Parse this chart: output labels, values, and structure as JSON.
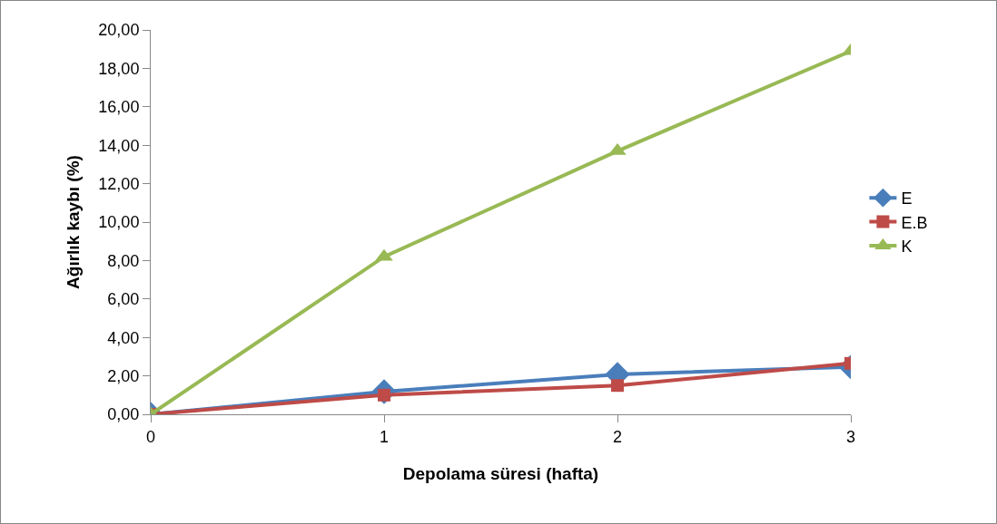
{
  "chart_data": {
    "type": "line",
    "xlabel": "Depolama süresi (hafta)",
    "ylabel": "Ağırlık kaybı (%)",
    "x": [
      0,
      1,
      2,
      3
    ],
    "xlim": [
      0,
      3
    ],
    "xticks": [
      0,
      1,
      2,
      3
    ],
    "ylim": [
      0,
      20
    ],
    "yticks": [
      {
        "value": 0,
        "label": "0,00"
      },
      {
        "value": 2,
        "label": "2,00"
      },
      {
        "value": 4,
        "label": "4,00"
      },
      {
        "value": 6,
        "label": "6,00"
      },
      {
        "value": 8,
        "label": "8,00"
      },
      {
        "value": 10,
        "label": "10,00"
      },
      {
        "value": 12,
        "label": "12,00"
      },
      {
        "value": 14,
        "label": "14,00"
      },
      {
        "value": 16,
        "label": "16,00"
      },
      {
        "value": 18,
        "label": "18,00"
      },
      {
        "value": 20,
        "label": "20,00"
      }
    ],
    "series": [
      {
        "name": "E",
        "color": "#4a7ebb",
        "marker": "diamond",
        "values": [
          0,
          1.18,
          2.08,
          2.46
        ]
      },
      {
        "name": "E.B",
        "color": "#be4b48",
        "marker": "square",
        "values": [
          0,
          1.0,
          1.5,
          2.65
        ]
      },
      {
        "name": "K",
        "color": "#98b954",
        "marker": "triangle",
        "values": [
          0,
          8.2,
          13.7,
          18.9
        ]
      }
    ],
    "legend": "right",
    "grid": false,
    "line_style": "solid"
  }
}
